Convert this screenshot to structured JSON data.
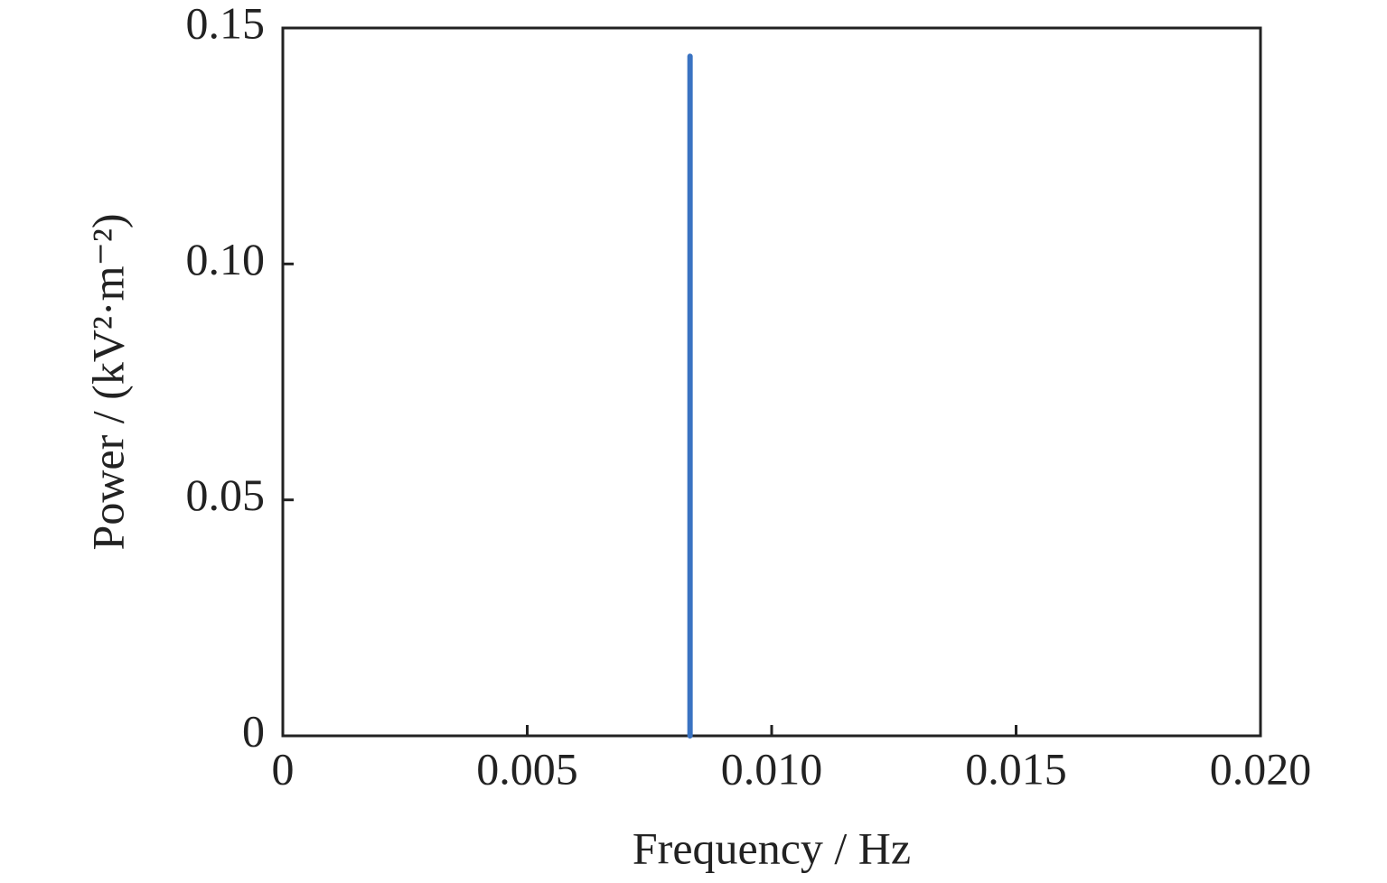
{
  "chart_data": {
    "type": "line",
    "x_label": "Frequency / Hz",
    "y_label": "Power / (kV²·m⁻²)",
    "x": [
      0.00833,
      0.00833
    ],
    "series": [
      {
        "color": "#3a73c2",
        "values": [
          0,
          0.144
        ]
      }
    ],
    "xlim": [
      0,
      0.02
    ],
    "ylim": [
      0,
      0.15
    ],
    "xticks": [
      0,
      0.005,
      {
        "value": 0.01,
        "label": "0.010"
      },
      0.015,
      {
        "value": 0.02,
        "label": "0.020"
      }
    ],
    "yticks": [
      0,
      0.05,
      {
        "value": 0.1,
        "label": "0.10"
      },
      0.15
    ],
    "grid": false
  }
}
